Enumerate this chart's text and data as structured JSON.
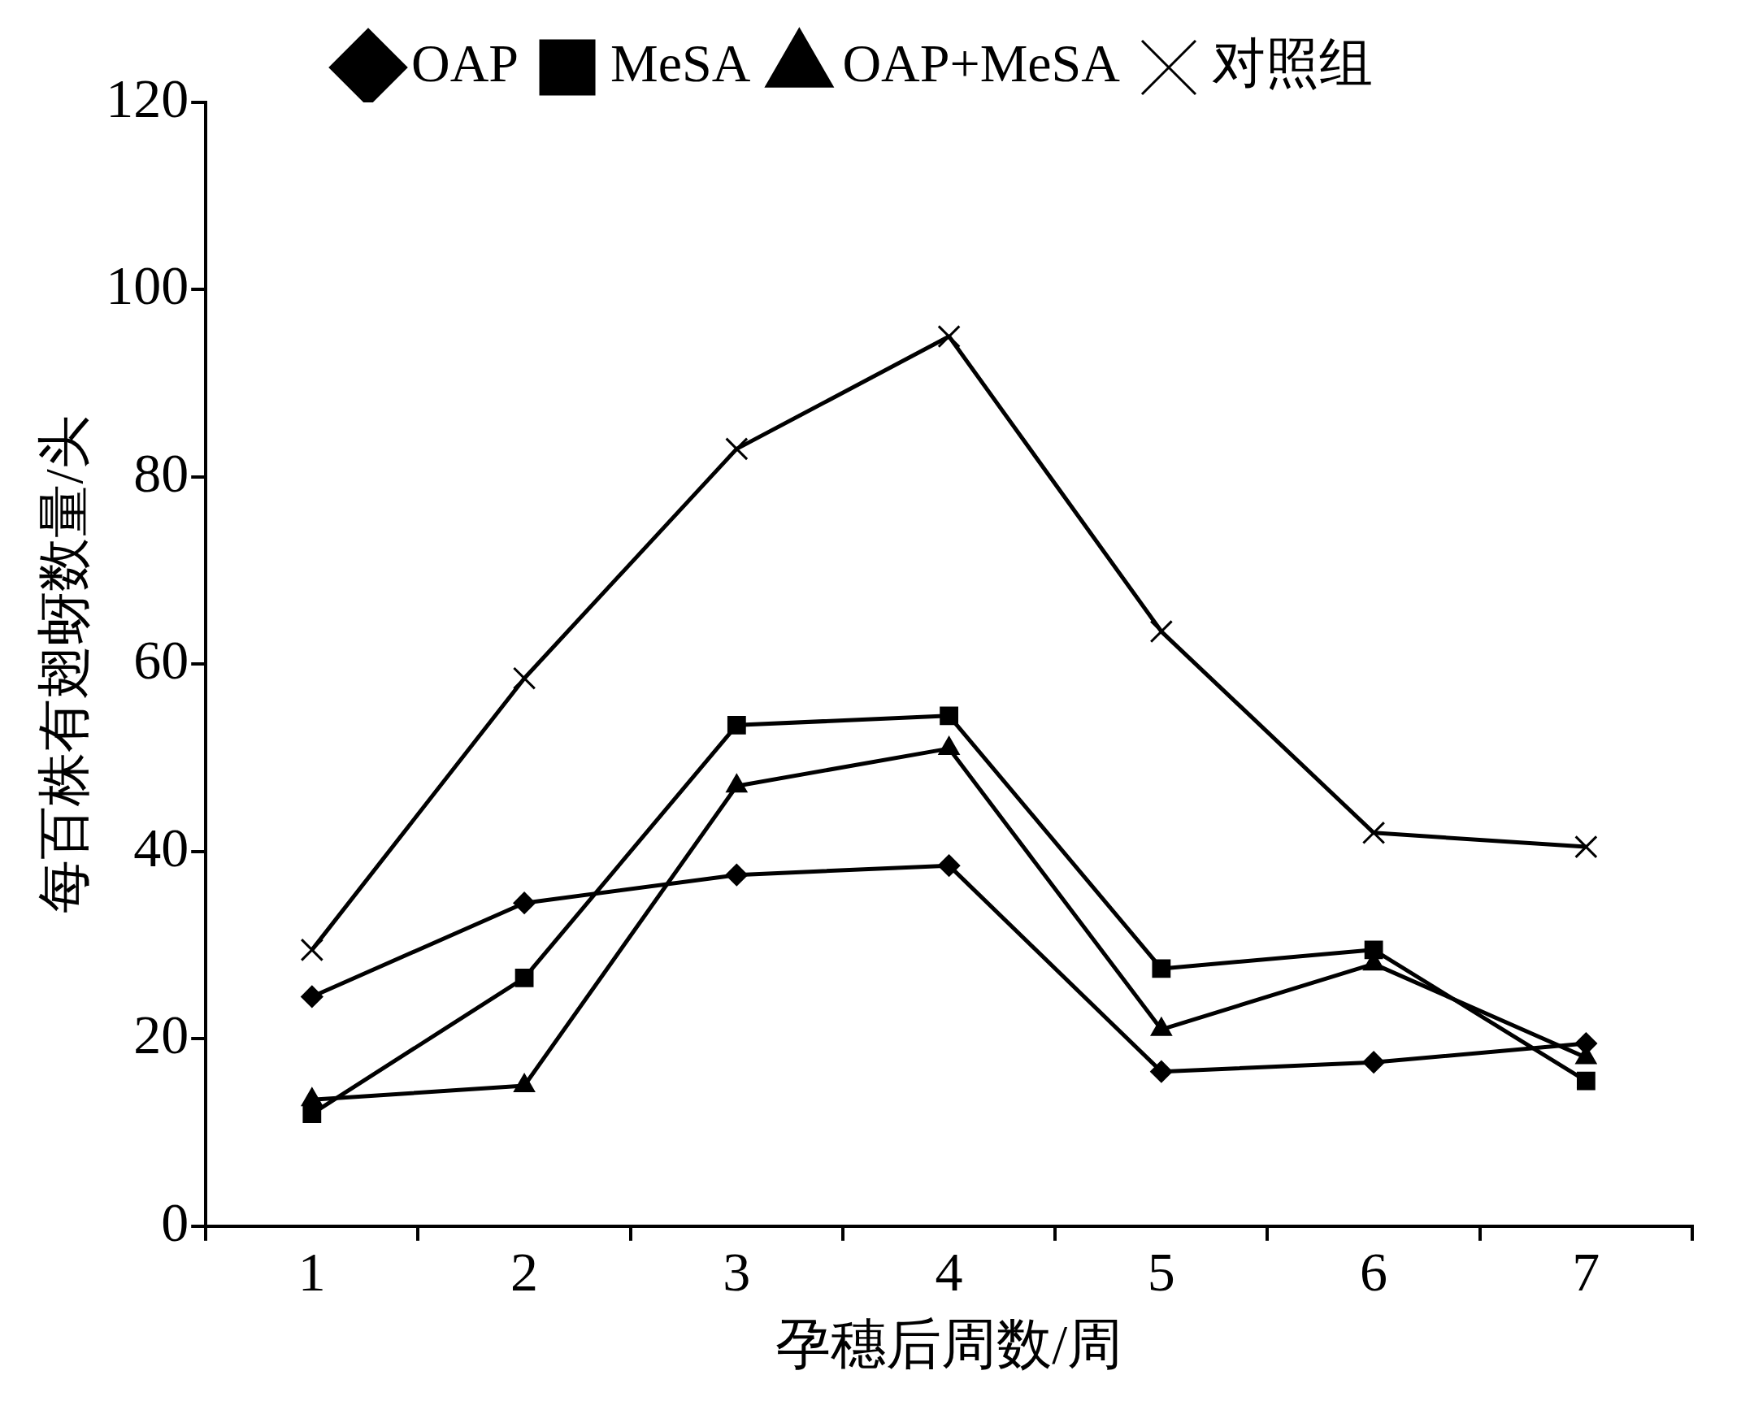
{
  "chart_data": {
    "type": "line",
    "xlabel": "孕穗后周数/周",
    "ylabel": "每百株有翅蚜数量/头",
    "categories": [
      "1",
      "2",
      "3",
      "4",
      "5",
      "6",
      "7"
    ],
    "series": [
      {
        "name": "OAP",
        "color": "#000000",
        "marker": "diamond",
        "values": [
          24.5,
          34.5,
          37.5,
          38.5,
          16.5,
          17.5,
          19.5
        ]
      },
      {
        "name": "MeSA",
        "color": "#000000",
        "marker": "square",
        "values": [
          12,
          26.5,
          53.5,
          54.5,
          27.5,
          29.5,
          15.5
        ]
      },
      {
        "name": "OAP+MeSA",
        "color": "#000000",
        "marker": "triangle",
        "values": [
          13.5,
          15,
          47,
          51,
          21,
          28,
          18
        ]
      },
      {
        "name": "对照组",
        "color": "#000000",
        "marker": "cross",
        "values": [
          29.5,
          58.5,
          83,
          95,
          63.5,
          42,
          40.5
        ]
      }
    ],
    "ylim": [
      0,
      120
    ],
    "yticks": [
      0,
      20,
      40,
      60,
      80,
      100,
      120
    ],
    "grid": false,
    "legend": "top",
    "line_style": "solid"
  }
}
